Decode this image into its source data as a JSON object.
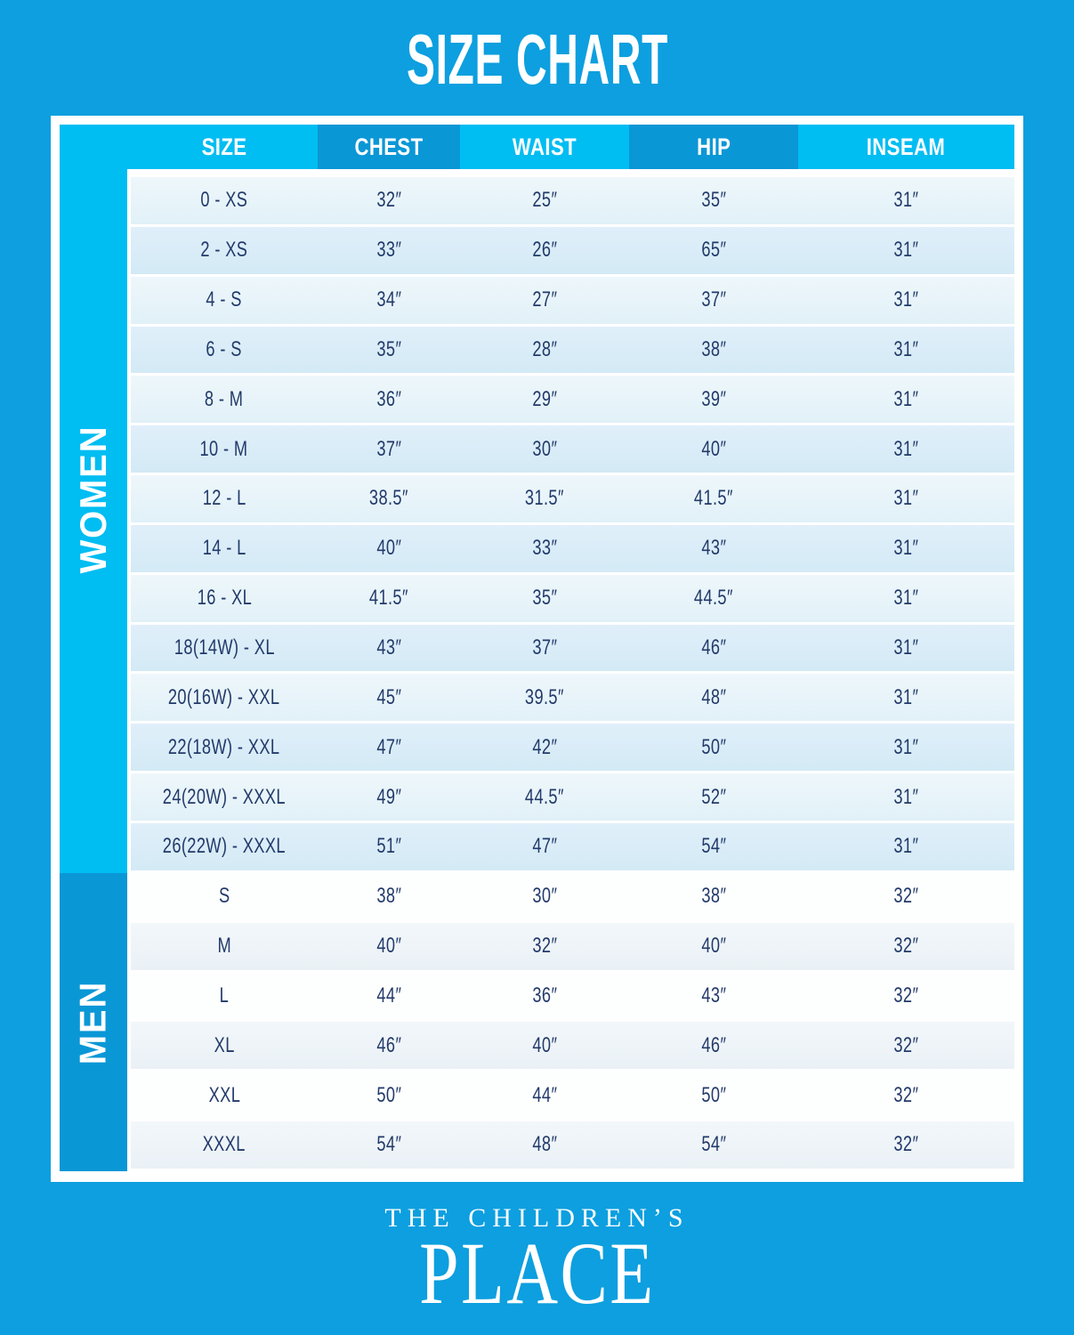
{
  "title": "SIZE CHART",
  "colors": {
    "background_blue": "#0d9fdf",
    "accent_cyan": "#00bdf2",
    "header_dark_blue": "#0a97d6",
    "row_light_blue": "#e9f4fa",
    "row_mid_blue": "#d8ecf7",
    "text_navy": "#223a6a",
    "white": "#ffffff"
  },
  "table": {
    "columns": [
      "SIZE",
      "CHEST",
      "WAIST",
      "HIP",
      "INSEAM"
    ],
    "sections": [
      {
        "label": "WOMEN",
        "rows": [
          [
            "0 - XS",
            "32″",
            "25″",
            "35″",
            "31″"
          ],
          [
            "2 - XS",
            "33″",
            "26″",
            "65″",
            "31″"
          ],
          [
            "4 - S",
            "34″",
            "27″",
            "37″",
            "31″"
          ],
          [
            "6 - S",
            "35″",
            "28″",
            "38″",
            "31″"
          ],
          [
            "8 - M",
            "36″",
            "29″",
            "39″",
            "31″"
          ],
          [
            "10 - M",
            "37″",
            "30″",
            "40″",
            "31″"
          ],
          [
            "12 - L",
            "38.5″",
            "31.5″",
            "41.5″",
            "31″"
          ],
          [
            "14 - L",
            "40″",
            "33″",
            "43″",
            "31″"
          ],
          [
            "16 - XL",
            "41.5″",
            "35″",
            "44.5″",
            "31″"
          ],
          [
            "18(14W) - XL",
            "43″",
            "37″",
            "46″",
            "31″"
          ],
          [
            "20(16W) - XXL",
            "45″",
            "39.5″",
            "48″",
            "31″"
          ],
          [
            "22(18W) - XXL",
            "47″",
            "42″",
            "50″",
            "31″"
          ],
          [
            "24(20W) - XXXL",
            "49″",
            "44.5″",
            "52″",
            "31″"
          ],
          [
            "26(22W) - XXXL",
            "51″",
            "47″",
            "54″",
            "31″"
          ]
        ]
      },
      {
        "label": "MEN",
        "rows": [
          [
            "S",
            "38″",
            "30″",
            "38″",
            "32″"
          ],
          [
            "M",
            "40″",
            "32″",
            "40″",
            "32″"
          ],
          [
            "L",
            "44″",
            "36″",
            "43″",
            "32″"
          ],
          [
            "XL",
            "46″",
            "40″",
            "46″",
            "32″"
          ],
          [
            "XXL",
            "50″",
            "44″",
            "50″",
            "32″"
          ],
          [
            "XXXL",
            "54″",
            "48″",
            "54″",
            "32″"
          ]
        ]
      }
    ]
  },
  "footer": {
    "brand_line1": "THE CHILDREN’S",
    "brand_line2": "PLACE"
  }
}
